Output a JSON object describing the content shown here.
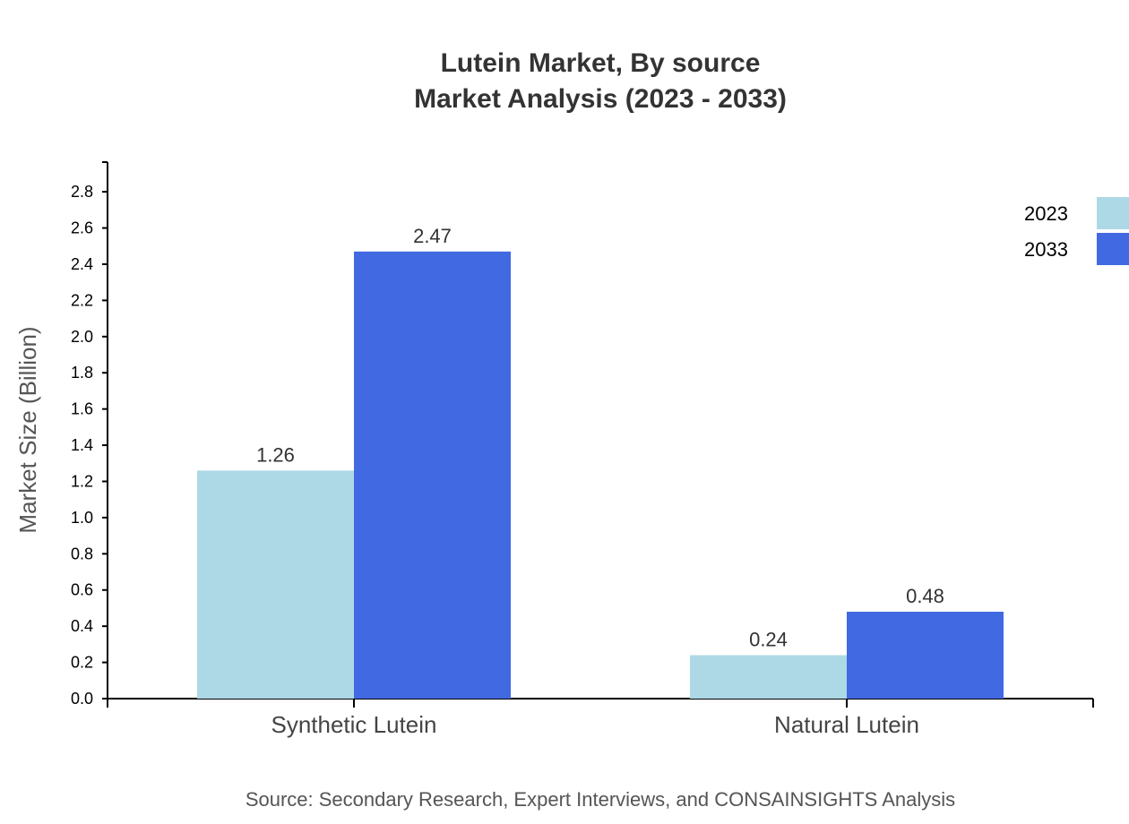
{
  "chart_data": {
    "type": "bar",
    "title": "Lutein Market, By source",
    "subtitle": "Market Analysis (2023 - 2033)",
    "xlabel": "",
    "ylabel": "Market Size (Billion)",
    "ylim": [
      0,
      2.964
    ],
    "yticks": [
      "0.0",
      "0.2",
      "0.4",
      "0.6",
      "0.8",
      "1.0",
      "1.2",
      "1.4",
      "1.6",
      "1.8",
      "2.0",
      "2.2",
      "2.4",
      "2.6",
      "2.8"
    ],
    "categories": [
      "Synthetic Lutein",
      "Natural Lutein"
    ],
    "series": [
      {
        "name": "2023",
        "values": [
          1.26,
          0.24
        ],
        "labels": [
          "1.26",
          "0.24"
        ],
        "color": "#ADD8E6"
      },
      {
        "name": "2033",
        "values": [
          2.47,
          0.48
        ],
        "labels": [
          "2.47",
          "0.48"
        ],
        "color": "#4169E1"
      }
    ],
    "grid": false,
    "legend": "top-right",
    "source": "Source: Secondary Research, Expert Interviews, and CONSAINSIGHTS Analysis"
  }
}
